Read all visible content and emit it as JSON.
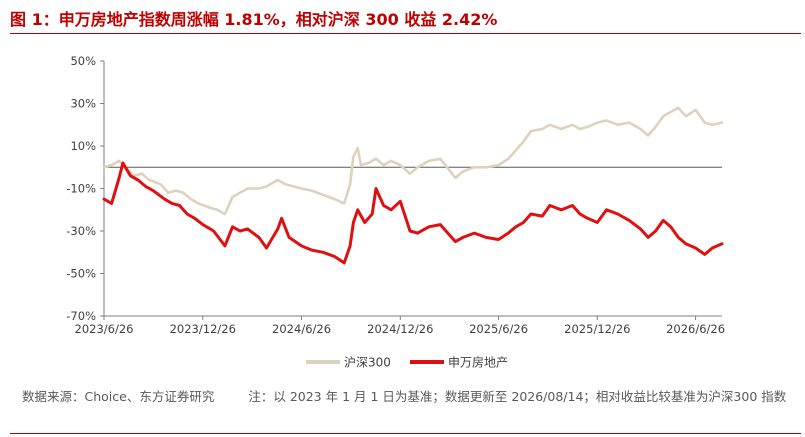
{
  "title": "图 1：申万房地产指数周涨幅 1.81%，相对沪深 300 收益 2.42%",
  "source": "数据来源：Choice、东方证券研究",
  "note": "注：以 2023 年 1 月 1 日为基准；数据更新至 2026/08/14；相对收益比较基准为沪深300 指数",
  "colors": {
    "hs300": "#ddd3bc",
    "realestate": "#e01010",
    "accent": "#c00000"
  },
  "chart_data": {
    "type": "line",
    "y_unit": "%",
    "ylim": [
      -70,
      50
    ],
    "yticks": [
      50,
      30,
      10,
      -10,
      -30,
      -50,
      -70
    ],
    "ytick_labels": [
      "50%",
      "30%",
      "10%",
      "-10%",
      "-30%",
      "-50%",
      "-70%"
    ],
    "x_range": [
      "2023-06-26",
      "2026-08-14"
    ],
    "xtick_dates": [
      "2023-06-26",
      "2023-12-26",
      "2024-06-26",
      "2024-12-26",
      "2025-06-26",
      "2025-12-26",
      "2026-06-26"
    ],
    "xtick_labels": [
      "2023/6/26",
      "2023/12/26",
      "2024/6/26",
      "2024/12/26",
      "2025/6/26",
      "2025/12/26",
      "2026/6/26"
    ],
    "legend_position": "bottom",
    "series": [
      {
        "name": "沪深300",
        "color": "#ddd3bc",
        "points": [
          [
            "2023-06-26",
            0
          ],
          [
            "2023-07-10",
            1
          ],
          [
            "2023-07-24",
            3
          ],
          [
            "2023-08-07",
            -1
          ],
          [
            "2023-08-21",
            -4
          ],
          [
            "2023-09-04",
            -3
          ],
          [
            "2023-09-18",
            -6
          ],
          [
            "2023-10-09",
            -8
          ],
          [
            "2023-10-23",
            -12
          ],
          [
            "2023-11-06",
            -11
          ],
          [
            "2023-11-20",
            -12
          ],
          [
            "2023-12-04",
            -15
          ],
          [
            "2023-12-18",
            -17
          ],
          [
            "2024-01-08",
            -19
          ],
          [
            "2024-01-22",
            -20
          ],
          [
            "2024-02-05",
            -22
          ],
          [
            "2024-02-19",
            -14
          ],
          [
            "2024-03-04",
            -12
          ],
          [
            "2024-03-18",
            -10
          ],
          [
            "2024-04-08",
            -10
          ],
          [
            "2024-04-22",
            -9
          ],
          [
            "2024-05-13",
            -6
          ],
          [
            "2024-05-27",
            -8
          ],
          [
            "2024-06-11",
            -9
          ],
          [
            "2024-06-26",
            -10
          ],
          [
            "2024-07-15",
            -11
          ],
          [
            "2024-08-05",
            -13
          ],
          [
            "2024-08-26",
            -15
          ],
          [
            "2024-09-13",
            -17
          ],
          [
            "2024-09-24",
            -8
          ],
          [
            "2024-09-30",
            5
          ],
          [
            "2024-10-08",
            9
          ],
          [
            "2024-10-14",
            1
          ],
          [
            "2024-10-28",
            2
          ],
          [
            "2024-11-11",
            4
          ],
          [
            "2024-11-25",
            1
          ],
          [
            "2024-12-09",
            3
          ],
          [
            "2024-12-26",
            1
          ],
          [
            "2025-01-13",
            -3
          ],
          [
            "2025-01-27",
            0
          ],
          [
            "2025-02-17",
            3
          ],
          [
            "2025-03-10",
            4
          ],
          [
            "2025-04-07",
            -5
          ],
          [
            "2025-04-21",
            -2
          ],
          [
            "2025-05-12",
            0
          ],
          [
            "2025-06-03",
            0
          ],
          [
            "2025-06-26",
            1
          ],
          [
            "2025-07-14",
            4
          ],
          [
            "2025-07-28",
            8
          ],
          [
            "2025-08-11",
            12
          ],
          [
            "2025-08-25",
            17
          ],
          [
            "2025-09-15",
            18
          ],
          [
            "2025-09-29",
            20
          ],
          [
            "2025-10-20",
            18
          ],
          [
            "2025-11-10",
            20
          ],
          [
            "2025-11-24",
            18
          ],
          [
            "2025-12-08",
            19
          ],
          [
            "2025-12-26",
            21
          ],
          [
            "2026-01-12",
            22
          ],
          [
            "2026-02-02",
            20
          ],
          [
            "2026-02-23",
            21
          ],
          [
            "2026-03-16",
            18
          ],
          [
            "2026-03-30",
            15
          ],
          [
            "2026-04-13",
            19
          ],
          [
            "2026-04-27",
            24
          ],
          [
            "2026-05-11",
            26
          ],
          [
            "2026-05-25",
            28
          ],
          [
            "2026-06-08",
            24
          ],
          [
            "2026-06-26",
            27
          ],
          [
            "2026-07-13",
            21
          ],
          [
            "2026-07-27",
            20
          ],
          [
            "2026-08-14",
            21
          ]
        ]
      },
      {
        "name": "申万房地产",
        "color": "#e01010",
        "points": [
          [
            "2023-06-26",
            -15
          ],
          [
            "2023-07-10",
            -17
          ],
          [
            "2023-07-24",
            -5
          ],
          [
            "2023-07-31",
            2
          ],
          [
            "2023-08-14",
            -4
          ],
          [
            "2023-08-28",
            -6
          ],
          [
            "2023-09-11",
            -9
          ],
          [
            "2023-09-25",
            -11
          ],
          [
            "2023-10-16",
            -15
          ],
          [
            "2023-10-30",
            -17
          ],
          [
            "2023-11-13",
            -18
          ],
          [
            "2023-11-27",
            -22
          ],
          [
            "2023-12-11",
            -24
          ],
          [
            "2023-12-26",
            -27
          ],
          [
            "2024-01-15",
            -30
          ],
          [
            "2024-02-05",
            -37
          ],
          [
            "2024-02-19",
            -28
          ],
          [
            "2024-03-04",
            -30
          ],
          [
            "2024-03-18",
            -29
          ],
          [
            "2024-04-08",
            -33
          ],
          [
            "2024-04-22",
            -38
          ],
          [
            "2024-05-13",
            -29
          ],
          [
            "2024-05-20",
            -24
          ],
          [
            "2024-06-03",
            -33
          ],
          [
            "2024-06-26",
            -37
          ],
          [
            "2024-07-15",
            -39
          ],
          [
            "2024-08-05",
            -40
          ],
          [
            "2024-08-26",
            -42
          ],
          [
            "2024-09-13",
            -45
          ],
          [
            "2024-09-24",
            -37
          ],
          [
            "2024-09-30",
            -26
          ],
          [
            "2024-10-08",
            -20
          ],
          [
            "2024-10-21",
            -26
          ],
          [
            "2024-11-04",
            -22
          ],
          [
            "2024-11-11",
            -10
          ],
          [
            "2024-11-25",
            -18
          ],
          [
            "2024-12-09",
            -20
          ],
          [
            "2024-12-26",
            -16
          ],
          [
            "2025-01-13",
            -30
          ],
          [
            "2025-01-27",
            -31
          ],
          [
            "2025-02-17",
            -28
          ],
          [
            "2025-03-10",
            -27
          ],
          [
            "2025-04-07",
            -35
          ],
          [
            "2025-04-21",
            -33
          ],
          [
            "2025-05-12",
            -31
          ],
          [
            "2025-06-03",
            -33
          ],
          [
            "2025-06-26",
            -34
          ],
          [
            "2025-07-14",
            -31
          ],
          [
            "2025-07-28",
            -28
          ],
          [
            "2025-08-11",
            -26
          ],
          [
            "2025-08-25",
            -22
          ],
          [
            "2025-09-15",
            -23
          ],
          [
            "2025-09-29",
            -18
          ],
          [
            "2025-10-20",
            -20
          ],
          [
            "2025-11-10",
            -18
          ],
          [
            "2025-11-24",
            -22
          ],
          [
            "2025-12-08",
            -24
          ],
          [
            "2025-12-26",
            -26
          ],
          [
            "2026-01-12",
            -20
          ],
          [
            "2026-02-02",
            -22
          ],
          [
            "2026-02-23",
            -25
          ],
          [
            "2026-03-16",
            -29
          ],
          [
            "2026-03-30",
            -33
          ],
          [
            "2026-04-13",
            -30
          ],
          [
            "2026-04-27",
            -25
          ],
          [
            "2026-05-11",
            -28
          ],
          [
            "2026-05-25",
            -33
          ],
          [
            "2026-06-08",
            -36
          ],
          [
            "2026-06-26",
            -38
          ],
          [
            "2026-07-13",
            -41
          ],
          [
            "2026-07-27",
            -38
          ],
          [
            "2026-08-14",
            -36
          ]
        ]
      }
    ]
  }
}
